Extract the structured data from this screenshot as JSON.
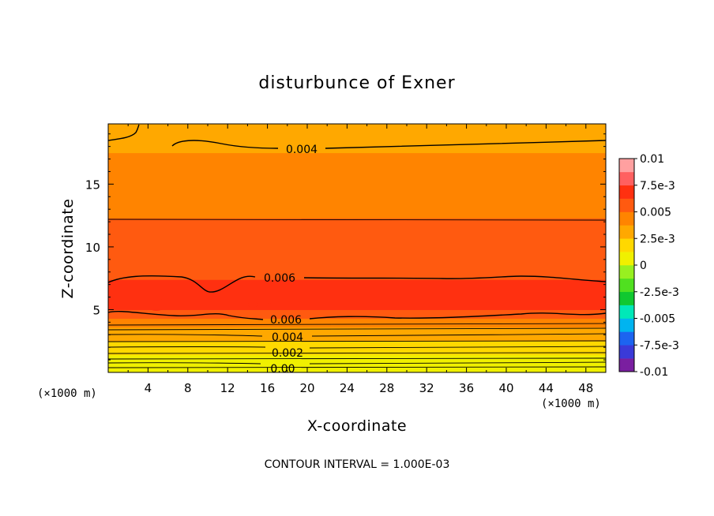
{
  "chart_data": {
    "type": "contour",
    "title": "disturbunce of Exner",
    "xlabel": "X-coordinate",
    "ylabel": "Z-coordinate",
    "x_unit": "(×1000 m)",
    "y_unit": "(×1000 m)",
    "xlim": [
      0,
      50
    ],
    "ylim": [
      0,
      19.8
    ],
    "x_ticks": [
      "4",
      "8",
      "12",
      "16",
      "20",
      "24",
      "28",
      "32",
      "36",
      "40",
      "44",
      "48"
    ],
    "y_ticks": [
      "5",
      "10",
      "15"
    ],
    "colorbar": {
      "labels": [
        "0.01",
        "7.5e-3",
        "0.005",
        "2.5e-3",
        "0",
        "-2.5e-3",
        "-0.005",
        "-7.5e-3",
        "-0.01"
      ],
      "levels": [
        -0.01,
        -0.0075,
        -0.005,
        -0.0025,
        0,
        0.0025,
        0.005,
        0.0075,
        0.01
      ],
      "colors": [
        "#7a1fa0",
        "#3a3ad8",
        "#1c64f0",
        "#00b4f0",
        "#00e8b8",
        "#10c830",
        "#50e020",
        "#98f020",
        "#f0f000",
        "#ffd800",
        "#ffa800",
        "#ff8400",
        "#ff5a10",
        "#ff3010",
        "#ff6060",
        "#ffa0a0"
      ]
    },
    "bands_z_to_value": [
      {
        "z": [
          0.0,
          0.3
        ],
        "value": 0.0
      },
      {
        "z": [
          0.3,
          0.8
        ],
        "value": 0.0005
      },
      {
        "z": [
          0.8,
          1.4
        ],
        "value": 0.001
      },
      {
        "z": [
          1.4,
          2.0
        ],
        "value": 0.0015
      },
      {
        "z": [
          2.0,
          2.5
        ],
        "value": 0.002
      },
      {
        "z": [
          2.5,
          3.0
        ],
        "value": 0.003
      },
      {
        "z": [
          3.0,
          3.6
        ],
        "value": 0.0035
      },
      {
        "z": [
          3.6,
          4.3
        ],
        "value": 0.0045
      },
      {
        "z": [
          4.3,
          5.0
        ],
        "value": 0.0055
      },
      {
        "z": [
          5.0,
          7.4
        ],
        "value": 0.0065
      },
      {
        "z": [
          7.4,
          10.0
        ],
        "value": 0.0055
      },
      {
        "z": [
          10.0,
          12.3
        ],
        "value": 0.005
      },
      {
        "z": [
          12.3,
          15.0
        ],
        "value": 0.0045
      },
      {
        "z": [
          15.0,
          17.5
        ],
        "value": 0.004
      },
      {
        "z": [
          17.5,
          19.8
        ],
        "value": 0.0035
      }
    ],
    "contour_labels": [
      "0.004",
      "0.006",
      "0.006",
      "0.004",
      "0.002",
      "0.00"
    ],
    "footer": "CONTOUR INTERVAL = 1.000E-03"
  }
}
